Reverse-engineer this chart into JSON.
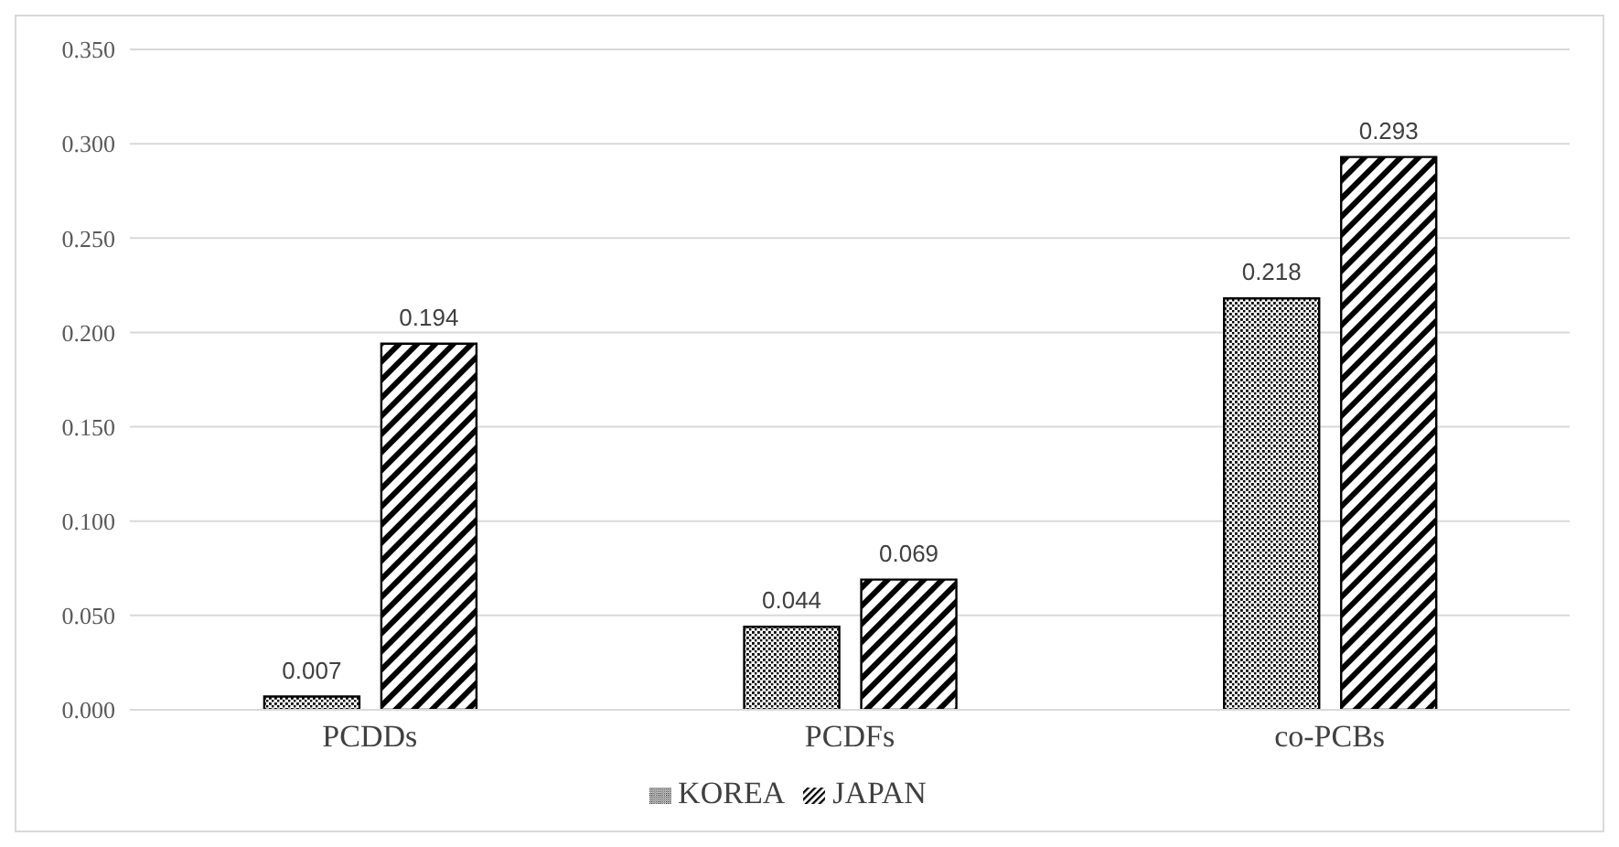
{
  "chart_data": {
    "type": "bar",
    "categories": [
      "PCDDs",
      "PCDFs",
      "co-PCBs"
    ],
    "series": [
      {
        "name": "KOREA",
        "color": "#000000",
        "values": [
          0.007,
          0.044,
          0.218
        ]
      },
      {
        "name": "JAPAN",
        "color": "#000000",
        "values": [
          0.194,
          0.069,
          0.293
        ]
      }
    ],
    "ylim": [
      0,
      0.35
    ],
    "yticks": [
      {
        "value": 0,
        "label": "0.000"
      },
      {
        "value": 0.05,
        "label": "0.050"
      },
      {
        "value": 0.1,
        "label": "0.100"
      },
      {
        "value": 0.15,
        "label": "0.150"
      },
      {
        "value": 0.2,
        "label": "0.200"
      },
      {
        "value": 0.25,
        "label": "0.250"
      },
      {
        "value": 0.3,
        "label": "0.300"
      },
      {
        "value": 0.35,
        "label": "0.350"
      }
    ],
    "grid": "y",
    "legend": "bottom",
    "data_labels": true
  }
}
